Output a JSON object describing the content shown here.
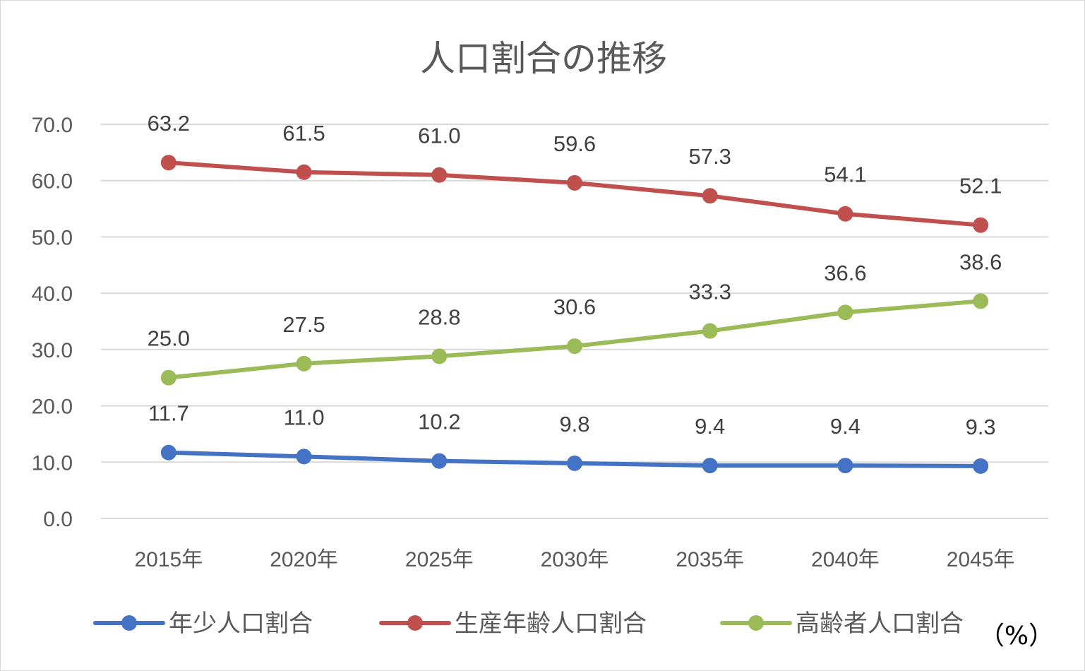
{
  "chart_data": {
    "type": "line",
    "title": "人口割合の推移",
    "unit_label": "（%）",
    "categories": [
      "2015年",
      "2020年",
      "2025年",
      "2030年",
      "2035年",
      "2040年",
      "2045年"
    ],
    "ylim": [
      0,
      70
    ],
    "y_ticks": [
      0,
      10,
      20,
      30,
      40,
      50,
      60,
      70
    ],
    "y_tick_labels": [
      "0.0",
      "10.0",
      "20.0",
      "30.0",
      "40.0",
      "50.0",
      "60.0",
      "70.0"
    ],
    "grid": true,
    "legend_position": "bottom",
    "series": [
      {
        "name": "年少人口割合",
        "color": "#4472c4",
        "values": [
          11.7,
          11.0,
          10.2,
          9.8,
          9.4,
          9.4,
          9.3
        ],
        "labels": [
          "11.7",
          "11.0",
          "10.2",
          "9.8",
          "9.4",
          "9.4",
          "9.3"
        ]
      },
      {
        "name": "生産年齢人口割合",
        "color": "#c0504d",
        "values": [
          63.2,
          61.5,
          61.0,
          59.6,
          57.3,
          54.1,
          52.1
        ],
        "labels": [
          "63.2",
          "61.5",
          "61.0",
          "59.6",
          "57.3",
          "54.1",
          "52.1"
        ]
      },
      {
        "name": "高齢者人口割合",
        "color": "#9bbb59",
        "values": [
          25.0,
          27.5,
          28.8,
          30.6,
          33.3,
          36.6,
          38.6
        ],
        "labels": [
          "25.0",
          "27.5",
          "28.8",
          "30.6",
          "33.3",
          "36.6",
          "38.6"
        ]
      }
    ]
  }
}
